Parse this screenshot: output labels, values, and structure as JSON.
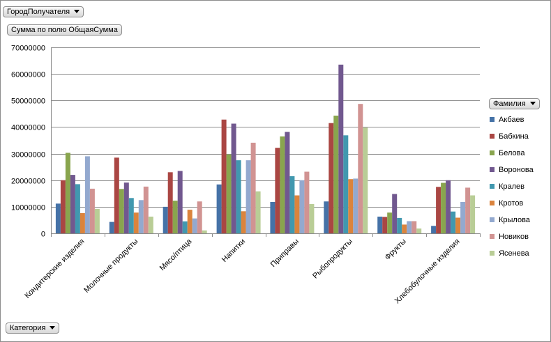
{
  "filter_field": {
    "label": "ГородПолучателя"
  },
  "value_field": {
    "label": "Сумма по полю ОбщаяСумма"
  },
  "legend_field": {
    "label": "Фамилия"
  },
  "axis_field": {
    "label": "Категория"
  },
  "chart_data": {
    "type": "bar",
    "categories": [
      "Кондитерские изделия",
      "Молочные продукты",
      "Мясо/птица",
      "Напитки",
      "Приправы",
      "Рыбопродукты",
      "Фрукты",
      "Хлебобулочные изделия"
    ],
    "ylim": [
      0,
      70000000
    ],
    "yticks": [
      "0",
      "10000000",
      "20000000",
      "30000000",
      "40000000",
      "50000000",
      "60000000",
      "70000000"
    ],
    "grid": true,
    "legend_position": "right",
    "series": [
      {
        "name": "Акбаев",
        "color": "#4572A7",
        "values": [
          11200000,
          4300000,
          10000000,
          18400000,
          11800000,
          12000000,
          6300000,
          2800000
        ]
      },
      {
        "name": "Бабкина",
        "color": "#AA4643",
        "values": [
          20000000,
          28500000,
          23000000,
          42800000,
          32200000,
          41500000,
          6200000,
          17500000
        ]
      },
      {
        "name": "Белова",
        "color": "#89A54E",
        "values": [
          30300000,
          16700000,
          12300000,
          29700000,
          36500000,
          44300000,
          7800000,
          19000000
        ]
      },
      {
        "name": "Воронова",
        "color": "#71588F",
        "values": [
          22000000,
          19100000,
          23500000,
          41300000,
          38200000,
          63500000,
          14800000,
          20000000
        ]
      },
      {
        "name": "Кралев",
        "color": "#4198AF",
        "values": [
          18500000,
          13300000,
          4500000,
          27500000,
          21500000,
          36900000,
          5800000,
          8200000
        ]
      },
      {
        "name": "Кротов",
        "color": "#DB843D",
        "values": [
          7600000,
          7800000,
          8900000,
          8300000,
          14300000,
          20400000,
          3300000,
          5900000
        ]
      },
      {
        "name": "Крылова",
        "color": "#93A9CF",
        "values": [
          29000000,
          12500000,
          5600000,
          27500000,
          20000000,
          20600000,
          4600000,
          11800000
        ]
      },
      {
        "name": "Новиков",
        "color": "#D19392",
        "values": [
          16800000,
          17600000,
          12000000,
          34100000,
          23200000,
          48700000,
          4600000,
          17200000
        ]
      },
      {
        "name": "Ясенева",
        "color": "#B9CD96",
        "values": [
          9200000,
          6300000,
          1100000,
          15800000,
          11000000,
          39800000,
          1800000,
          14300000
        ]
      }
    ]
  }
}
